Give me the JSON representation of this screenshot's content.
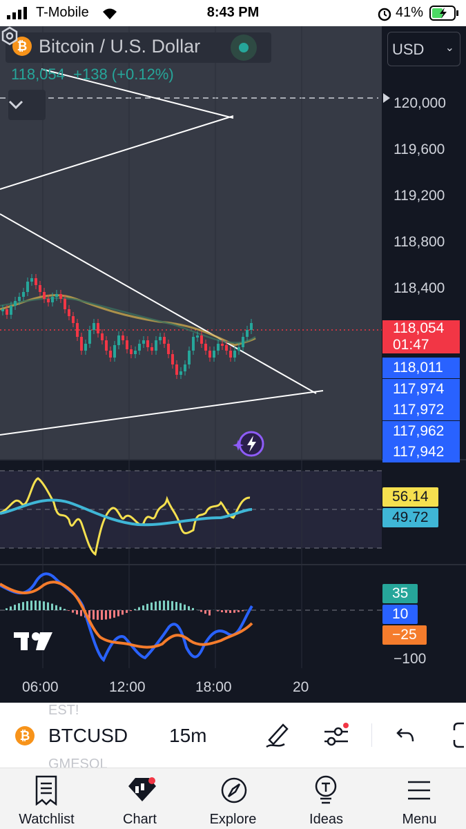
{
  "status_bar": {
    "carrier": "T-Mobile",
    "time": "8:43 PM",
    "battery": "41%"
  },
  "chart": {
    "symbol_title": "Bitcoin / U.S. Dollar",
    "coin_glyph": "₿",
    "last_price": "118,054",
    "change": "+138 (+0.12%)",
    "currency": "USD",
    "price_axis": [
      "120,000",
      "119,600",
      "119,200",
      "118,800",
      "118,400"
    ],
    "current_price_tag": {
      "price": "118,054",
      "countdown": "01:47"
    },
    "level_tags": [
      "118,011",
      "117,974",
      "117,972",
      "117,962",
      "117,942"
    ],
    "rsi_values": [
      "56.14",
      "49.72"
    ],
    "macd_values": [
      "35",
      "10",
      "−25"
    ],
    "macd_axis": "−100",
    "time_axis": [
      "06:00",
      "12:00",
      "18:00",
      "20"
    ],
    "colors": {
      "up": "#26a69a",
      "down": "#f23645",
      "rsi": "#f5e04f",
      "rsi_ma": "#3fb6d6",
      "macd": "#2962ff",
      "signal": "#f57c2c"
    }
  },
  "toolbar": {
    "symbol": "BTCUSD",
    "timeframe": "15m",
    "ghost_top": "EST!",
    "ghost_bottom": "GMESOL"
  },
  "tabs": [
    {
      "label": "Watchlist",
      "icon": "watchlist-icon"
    },
    {
      "label": "Chart",
      "icon": "chart-icon"
    },
    {
      "label": "Explore",
      "icon": "compass-icon"
    },
    {
      "label": "Ideas",
      "icon": "lightbulb-icon"
    },
    {
      "label": "Menu",
      "icon": "menu-icon"
    }
  ]
}
